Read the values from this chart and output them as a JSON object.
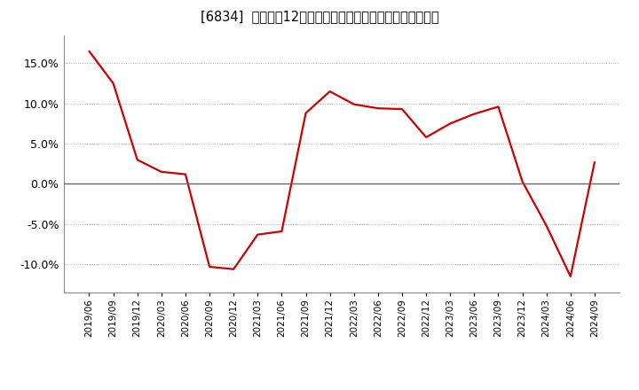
{
  "title": "[6834]  売上高の12か月移動合計の対前年同期増減率の推移",
  "line_color": "#cc0000",
  "background_color": "#ffffff",
  "grid_color": "#aaaaaa",
  "zero_line_color": "#666666",
  "dates": [
    "2019/06",
    "2019/09",
    "2019/12",
    "2020/03",
    "2020/06",
    "2020/09",
    "2020/12",
    "2021/03",
    "2021/06",
    "2021/09",
    "2021/12",
    "2022/03",
    "2022/06",
    "2022/09",
    "2022/12",
    "2023/03",
    "2023/06",
    "2023/09",
    "2023/12",
    "2024/03",
    "2024/06",
    "2024/09"
  ],
  "values": [
    16.5,
    12.5,
    3.0,
    1.5,
    1.2,
    -10.3,
    -10.6,
    -6.3,
    -5.9,
    8.8,
    11.5,
    9.9,
    9.4,
    9.3,
    5.8,
    7.5,
    8.7,
    9.6,
    0.3,
    -5.2,
    -11.5,
    2.7
  ],
  "yticks": [
    -10.0,
    -5.0,
    0.0,
    5.0,
    10.0,
    15.0
  ],
  "ylim": [
    -13.5,
    18.5
  ]
}
